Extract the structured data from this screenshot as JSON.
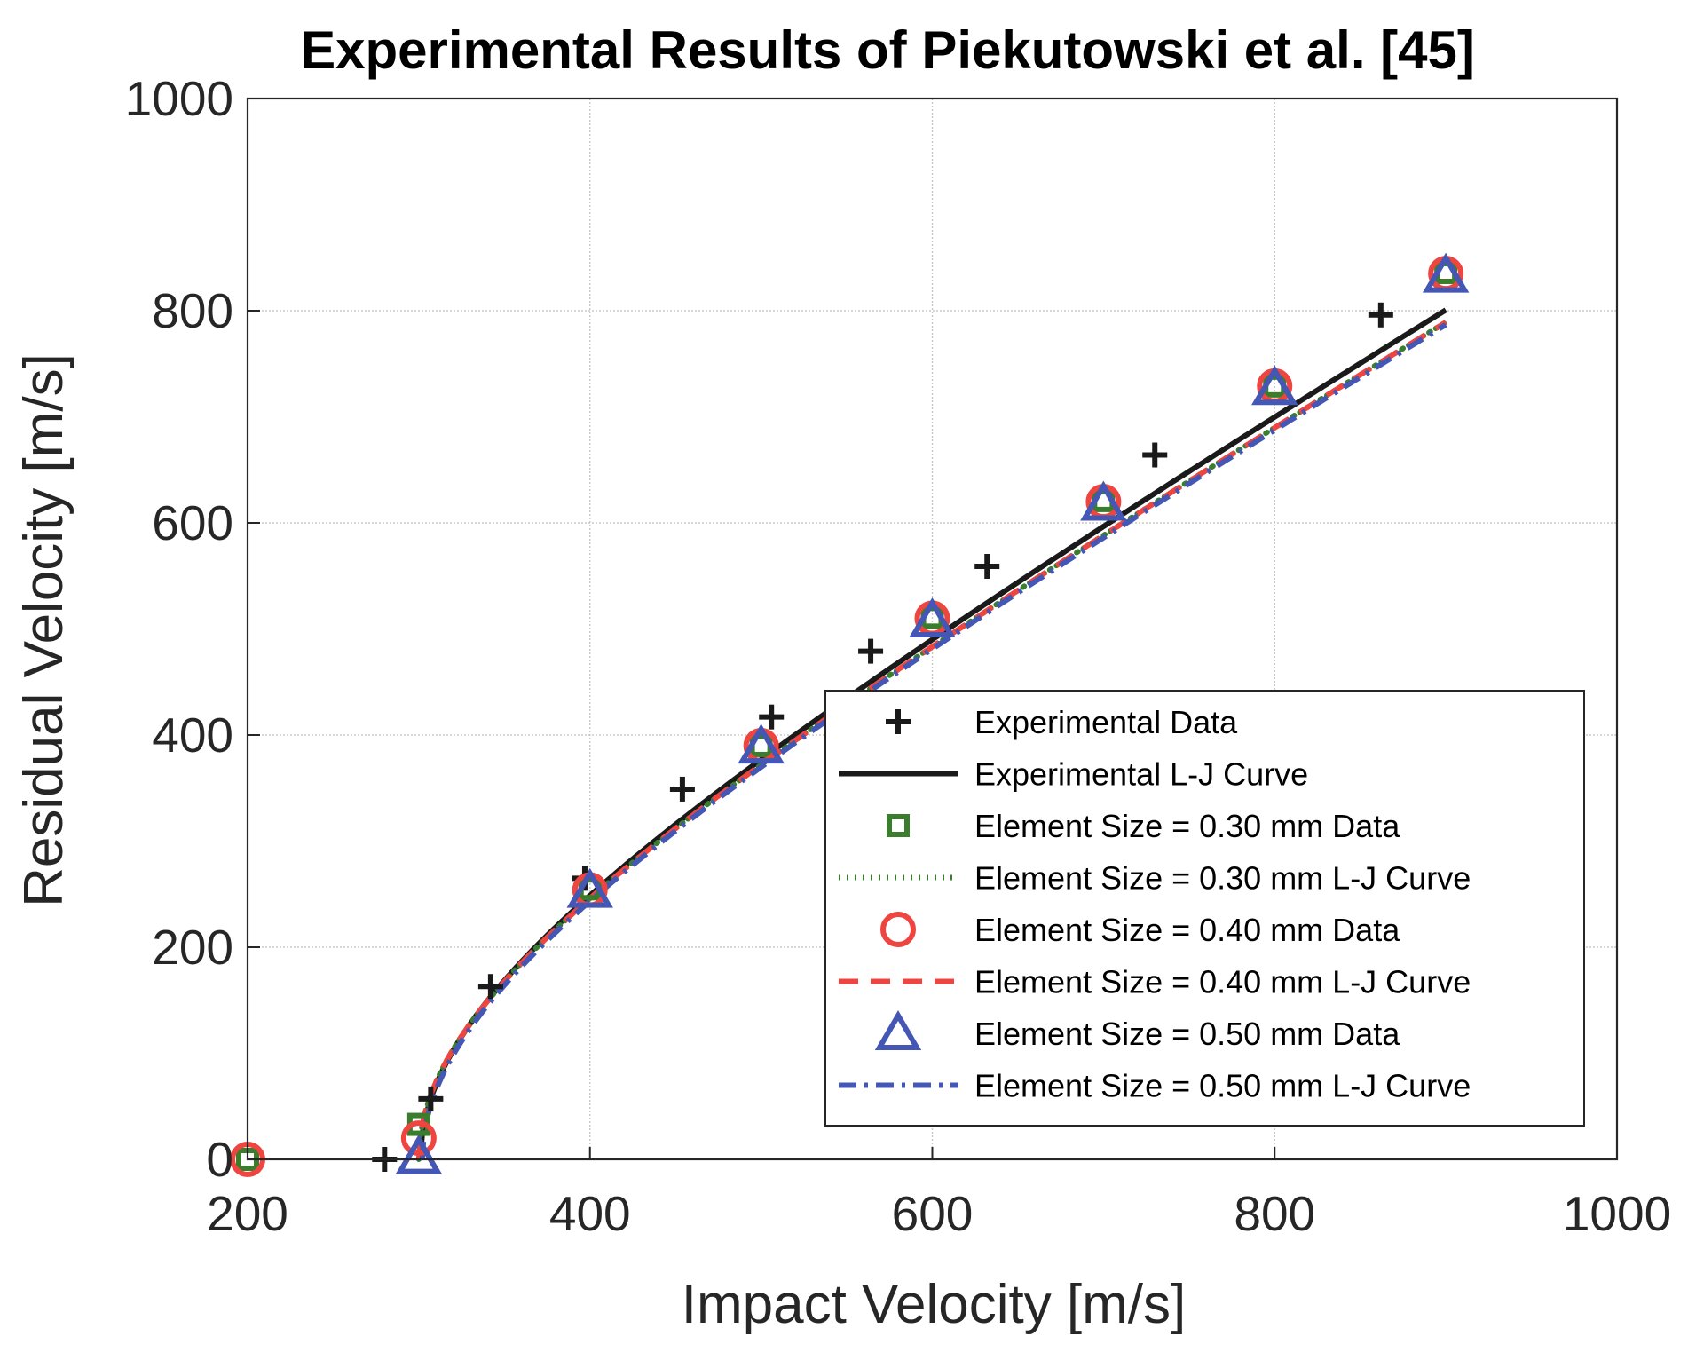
{
  "chart_data": {
    "type": "line",
    "title": "Experimental Results of Piekutowski et al. [45]",
    "xlabel": "Impact Velocity [m/s]",
    "ylabel": "Residual Velocity [m/s]",
    "xlim": [
      200,
      1000
    ],
    "ylim": [
      0,
      1000
    ],
    "xticks": [
      200,
      400,
      600,
      800,
      1000
    ],
    "yticks": [
      0,
      200,
      400,
      600,
      800,
      1000
    ],
    "grid": true,
    "legend_position": "bottom-right",
    "series": [
      {
        "name": "Experimental Data",
        "kind": "markers",
        "marker": "plus",
        "color": "#1a1a1a",
        "points": [
          [
            280,
            0
          ],
          [
            307,
            57
          ],
          [
            342,
            163
          ],
          [
            454,
            349
          ],
          [
            506,
            417
          ],
          [
            564,
            479
          ],
          [
            632,
            559
          ],
          [
            730,
            664
          ],
          [
            862,
            796
          ],
          [
            397,
            265
          ]
        ]
      },
      {
        "name": "Experimental L-J Curve",
        "kind": "curve",
        "style": "solid",
        "color": "#1a1a1a",
        "vbl": 301,
        "a": 0.944,
        "p": 2
      },
      {
        "name": "Element Size = 0.30 mm Data",
        "kind": "markers",
        "marker": "square",
        "color": "#3a7d2c",
        "points": [
          [
            200,
            0
          ],
          [
            300,
            33
          ],
          [
            400,
            255
          ],
          [
            500,
            390
          ],
          [
            600,
            511
          ],
          [
            700,
            621
          ],
          [
            800,
            729
          ],
          [
            900,
            836
          ]
        ]
      },
      {
        "name": "Element Size = 0.30 mm L-J Curve",
        "kind": "curve",
        "style": "dotted",
        "color": "#3a7d2c",
        "vbl": 300,
        "a": 0.93,
        "p": 2
      },
      {
        "name": "Element Size = 0.40 mm Data",
        "kind": "markers",
        "marker": "circle",
        "color": "#ee4540",
        "points": [
          [
            200,
            0
          ],
          [
            300,
            20
          ],
          [
            400,
            254
          ],
          [
            500,
            390
          ],
          [
            600,
            510
          ],
          [
            700,
            620
          ],
          [
            800,
            729
          ],
          [
            900,
            835
          ]
        ]
      },
      {
        "name": "Element Size = 0.40 mm L-J Curve",
        "kind": "curve",
        "style": "dashed",
        "color": "#ee4540",
        "vbl": 300,
        "a": 0.93,
        "p": 2
      },
      {
        "name": "Element Size = 0.50 mm Data",
        "kind": "markers",
        "marker": "triangle",
        "color": "#4457b4",
        "points": [
          [
            300,
            2
          ],
          [
            400,
            253
          ],
          [
            500,
            389
          ],
          [
            600,
            508
          ],
          [
            700,
            618
          ],
          [
            800,
            727
          ],
          [
            900,
            833
          ]
        ]
      },
      {
        "name": "Element Size = 0.50 mm L-J Curve",
        "kind": "curve",
        "style": "dashdot",
        "color": "#4457b4",
        "vbl": 302,
        "a": 0.928,
        "p": 2
      }
    ]
  }
}
